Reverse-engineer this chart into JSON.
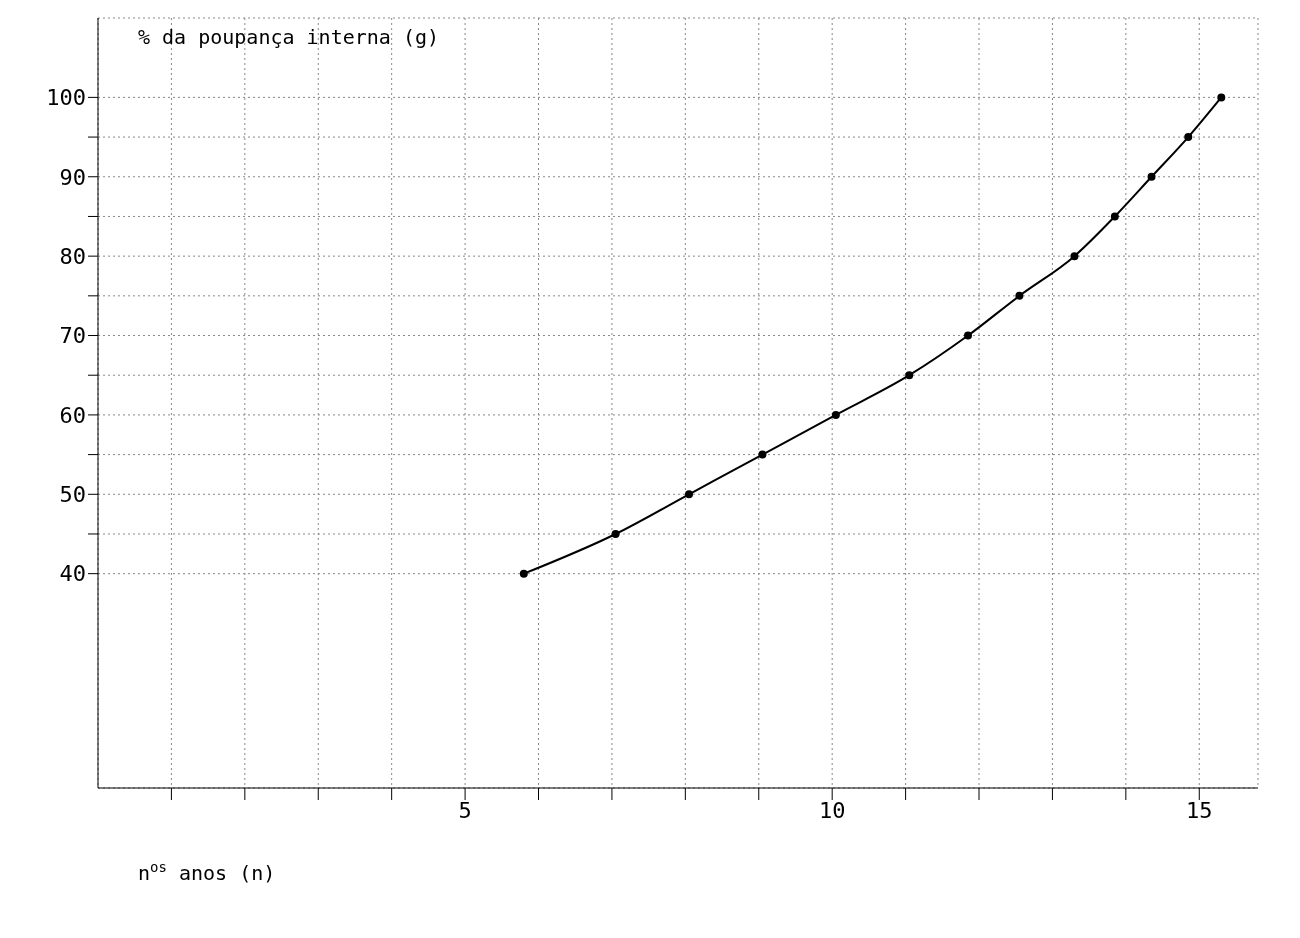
{
  "chart_data": {
    "type": "line",
    "ylabel": "% da poupança interna (g)",
    "xlabel": "n$^{os}$ anos (n)",
    "x": [
      5.8,
      7.05,
      8.05,
      9.05,
      10.05,
      11.05,
      11.85,
      12.55,
      13.3,
      13.85,
      14.35,
      14.85,
      15.3
    ],
    "series": [
      {
        "color": "#000000",
        "values": [
          40,
          45,
          50,
          55,
          60,
          65,
          70,
          75,
          80,
          85,
          90,
          95,
          100
        ]
      }
    ],
    "xlim": [
      0,
      15.8
    ],
    "ylim": [
      13,
      110
    ],
    "xticks": [
      {
        "value": 1,
        "label": null
      },
      {
        "value": 2,
        "label": null
      },
      {
        "value": 3,
        "label": null
      },
      {
        "value": 4,
        "label": null
      },
      5,
      {
        "value": 6,
        "label": null
      },
      {
        "value": 7,
        "label": null
      },
      {
        "value": 8,
        "label": null
      },
      {
        "value": 9,
        "label": null
      },
      10,
      {
        "value": 11,
        "label": null
      },
      {
        "value": 12,
        "label": null
      },
      {
        "value": 13,
        "label": null
      },
      {
        "value": 14,
        "label": null
      },
      15
    ],
    "yticks": [
      40,
      {
        "value": 45,
        "label": null
      },
      50,
      {
        "value": 55,
        "label": null
      },
      60,
      {
        "value": 65,
        "label": null
      },
      70,
      {
        "value": 75,
        "label": null
      },
      80,
      {
        "value": 85,
        "label": null
      },
      90,
      {
        "value": 95,
        "label": null
      },
      100
    ],
    "grid": true,
    "marker": "circle",
    "line_style": "solid"
  }
}
